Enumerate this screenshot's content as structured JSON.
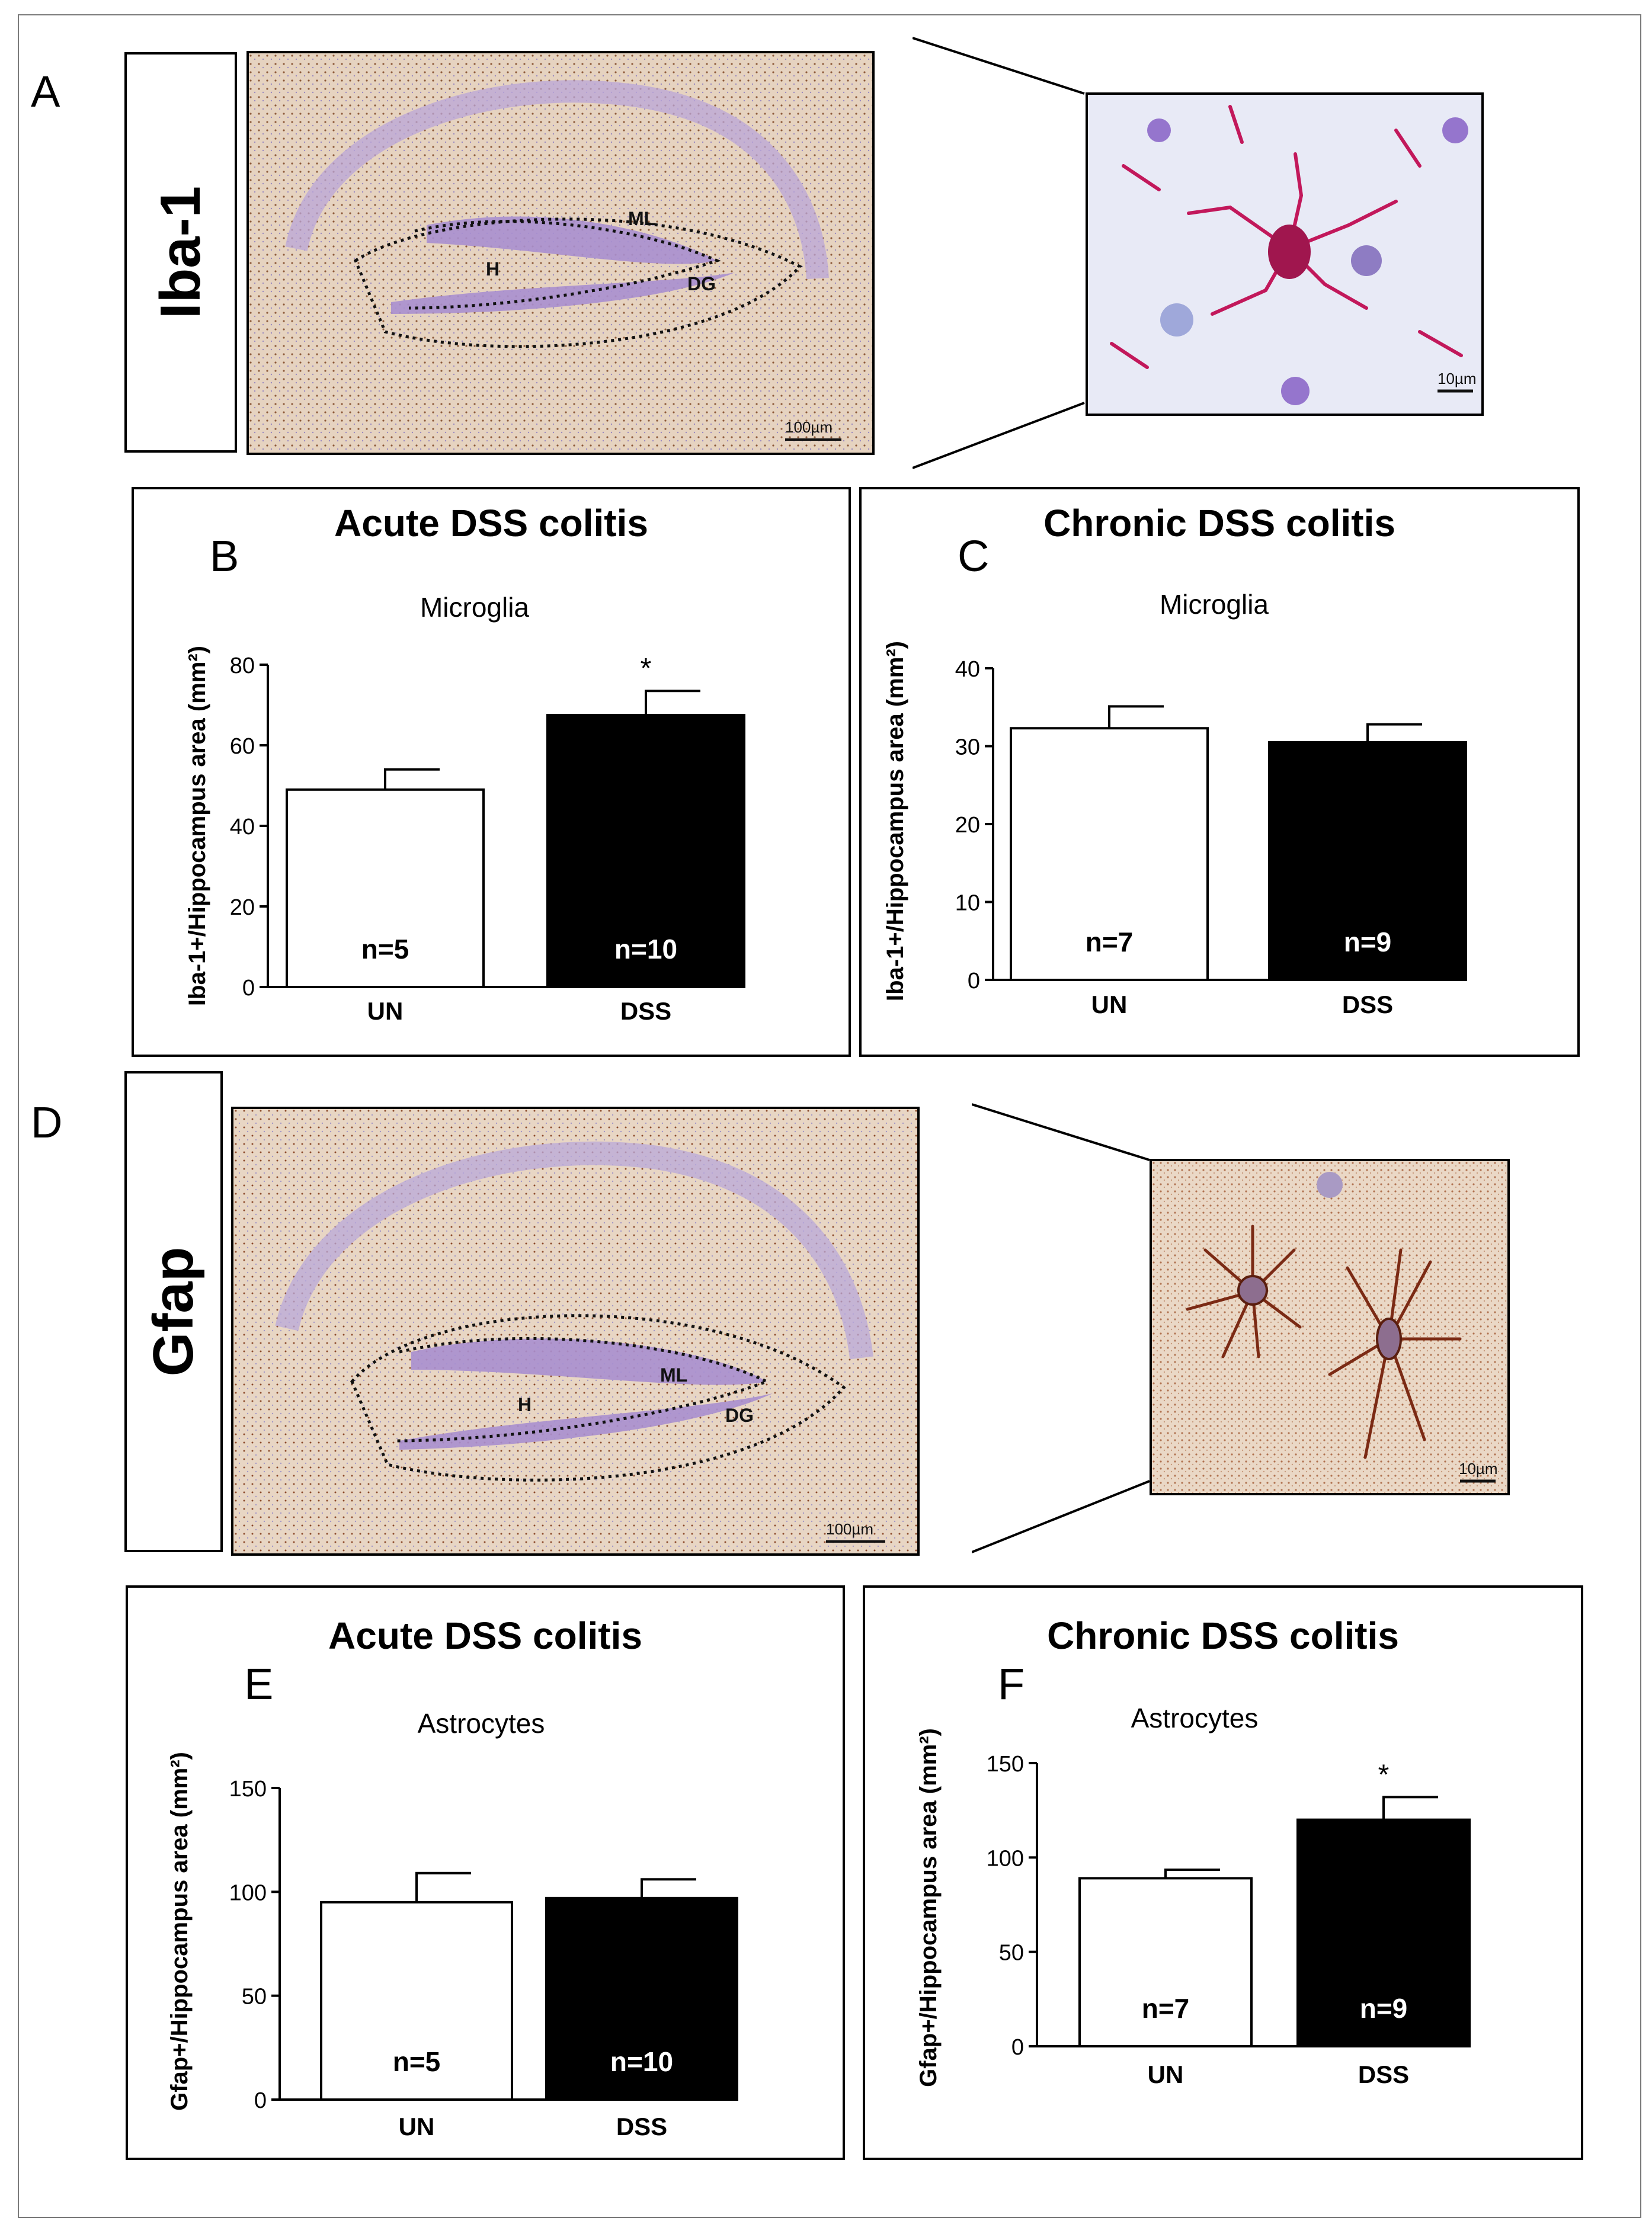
{
  "figure": {
    "row1": {
      "letter": "A",
      "stain": "Iba-1",
      "regions": [
        "ML",
        "H",
        "DG"
      ],
      "scale_main": "100µm",
      "scale_zoom": "10µm",
      "cell_color": "#c2185b"
    },
    "row2": {
      "letter": "D",
      "stain": "Gfap",
      "regions": [
        "ML",
        "H",
        "DG"
      ],
      "scale_main": "100µm",
      "scale_zoom": "10µm",
      "cell_color": "#7b2a14"
    }
  },
  "chart_data": [
    {
      "panel": "B",
      "type": "bar",
      "title": "Acute DSS colitis",
      "subtitle": "Microglia",
      "ylabel": "Iba-1+/Hippocampus area (mm²)",
      "categories": [
        "UN",
        "DSS"
      ],
      "values": [
        49,
        67.5
      ],
      "errors": [
        5,
        6
      ],
      "n_labels": [
        "n=5",
        "n=10"
      ],
      "bar_colors": [
        "#ffffff",
        "#000000"
      ],
      "significance": [
        "",
        "*"
      ],
      "ylim": [
        0,
        80
      ],
      "yticks": [
        0,
        20,
        40,
        60,
        80
      ]
    },
    {
      "panel": "C",
      "type": "bar",
      "title": "Chronic DSS colitis",
      "subtitle": "Microglia",
      "ylabel": "Iba-1+/Hippocampus area (mm²)",
      "categories": [
        "UN",
        "DSS"
      ],
      "values": [
        32.3,
        30.5
      ],
      "errors": [
        2.8,
        2.3
      ],
      "n_labels": [
        "n=7",
        "n=9"
      ],
      "bar_colors": [
        "#ffffff",
        "#000000"
      ],
      "significance": [
        "",
        ""
      ],
      "ylim": [
        0,
        40
      ],
      "yticks": [
        0,
        10,
        20,
        30,
        40
      ]
    },
    {
      "panel": "E",
      "type": "bar",
      "title": "Acute DSS colitis",
      "subtitle": "Astrocytes",
      "ylabel": "Gfap+/Hippocampus area (mm²)",
      "categories": [
        "UN",
        "DSS"
      ],
      "values": [
        95,
        97
      ],
      "errors": [
        14,
        9
      ],
      "n_labels": [
        "n=5",
        "n=10"
      ],
      "bar_colors": [
        "#ffffff",
        "#000000"
      ],
      "significance": [
        "",
        ""
      ],
      "ylim": [
        0,
        150
      ],
      "yticks": [
        0,
        50,
        100,
        150
      ]
    },
    {
      "panel": "F",
      "type": "bar",
      "title": "Chronic DSS colitis",
      "subtitle": "Astrocytes",
      "ylabel": "Gfap+/Hippocampus area (mm²)",
      "categories": [
        "UN",
        "DSS"
      ],
      "values": [
        89,
        120
      ],
      "errors": [
        4.5,
        12
      ],
      "n_labels": [
        "n=7",
        "n=9"
      ],
      "bar_colors": [
        "#ffffff",
        "#000000"
      ],
      "significance": [
        "",
        "*"
      ],
      "ylim": [
        0,
        150
      ],
      "yticks": [
        0,
        50,
        100,
        150
      ]
    }
  ]
}
